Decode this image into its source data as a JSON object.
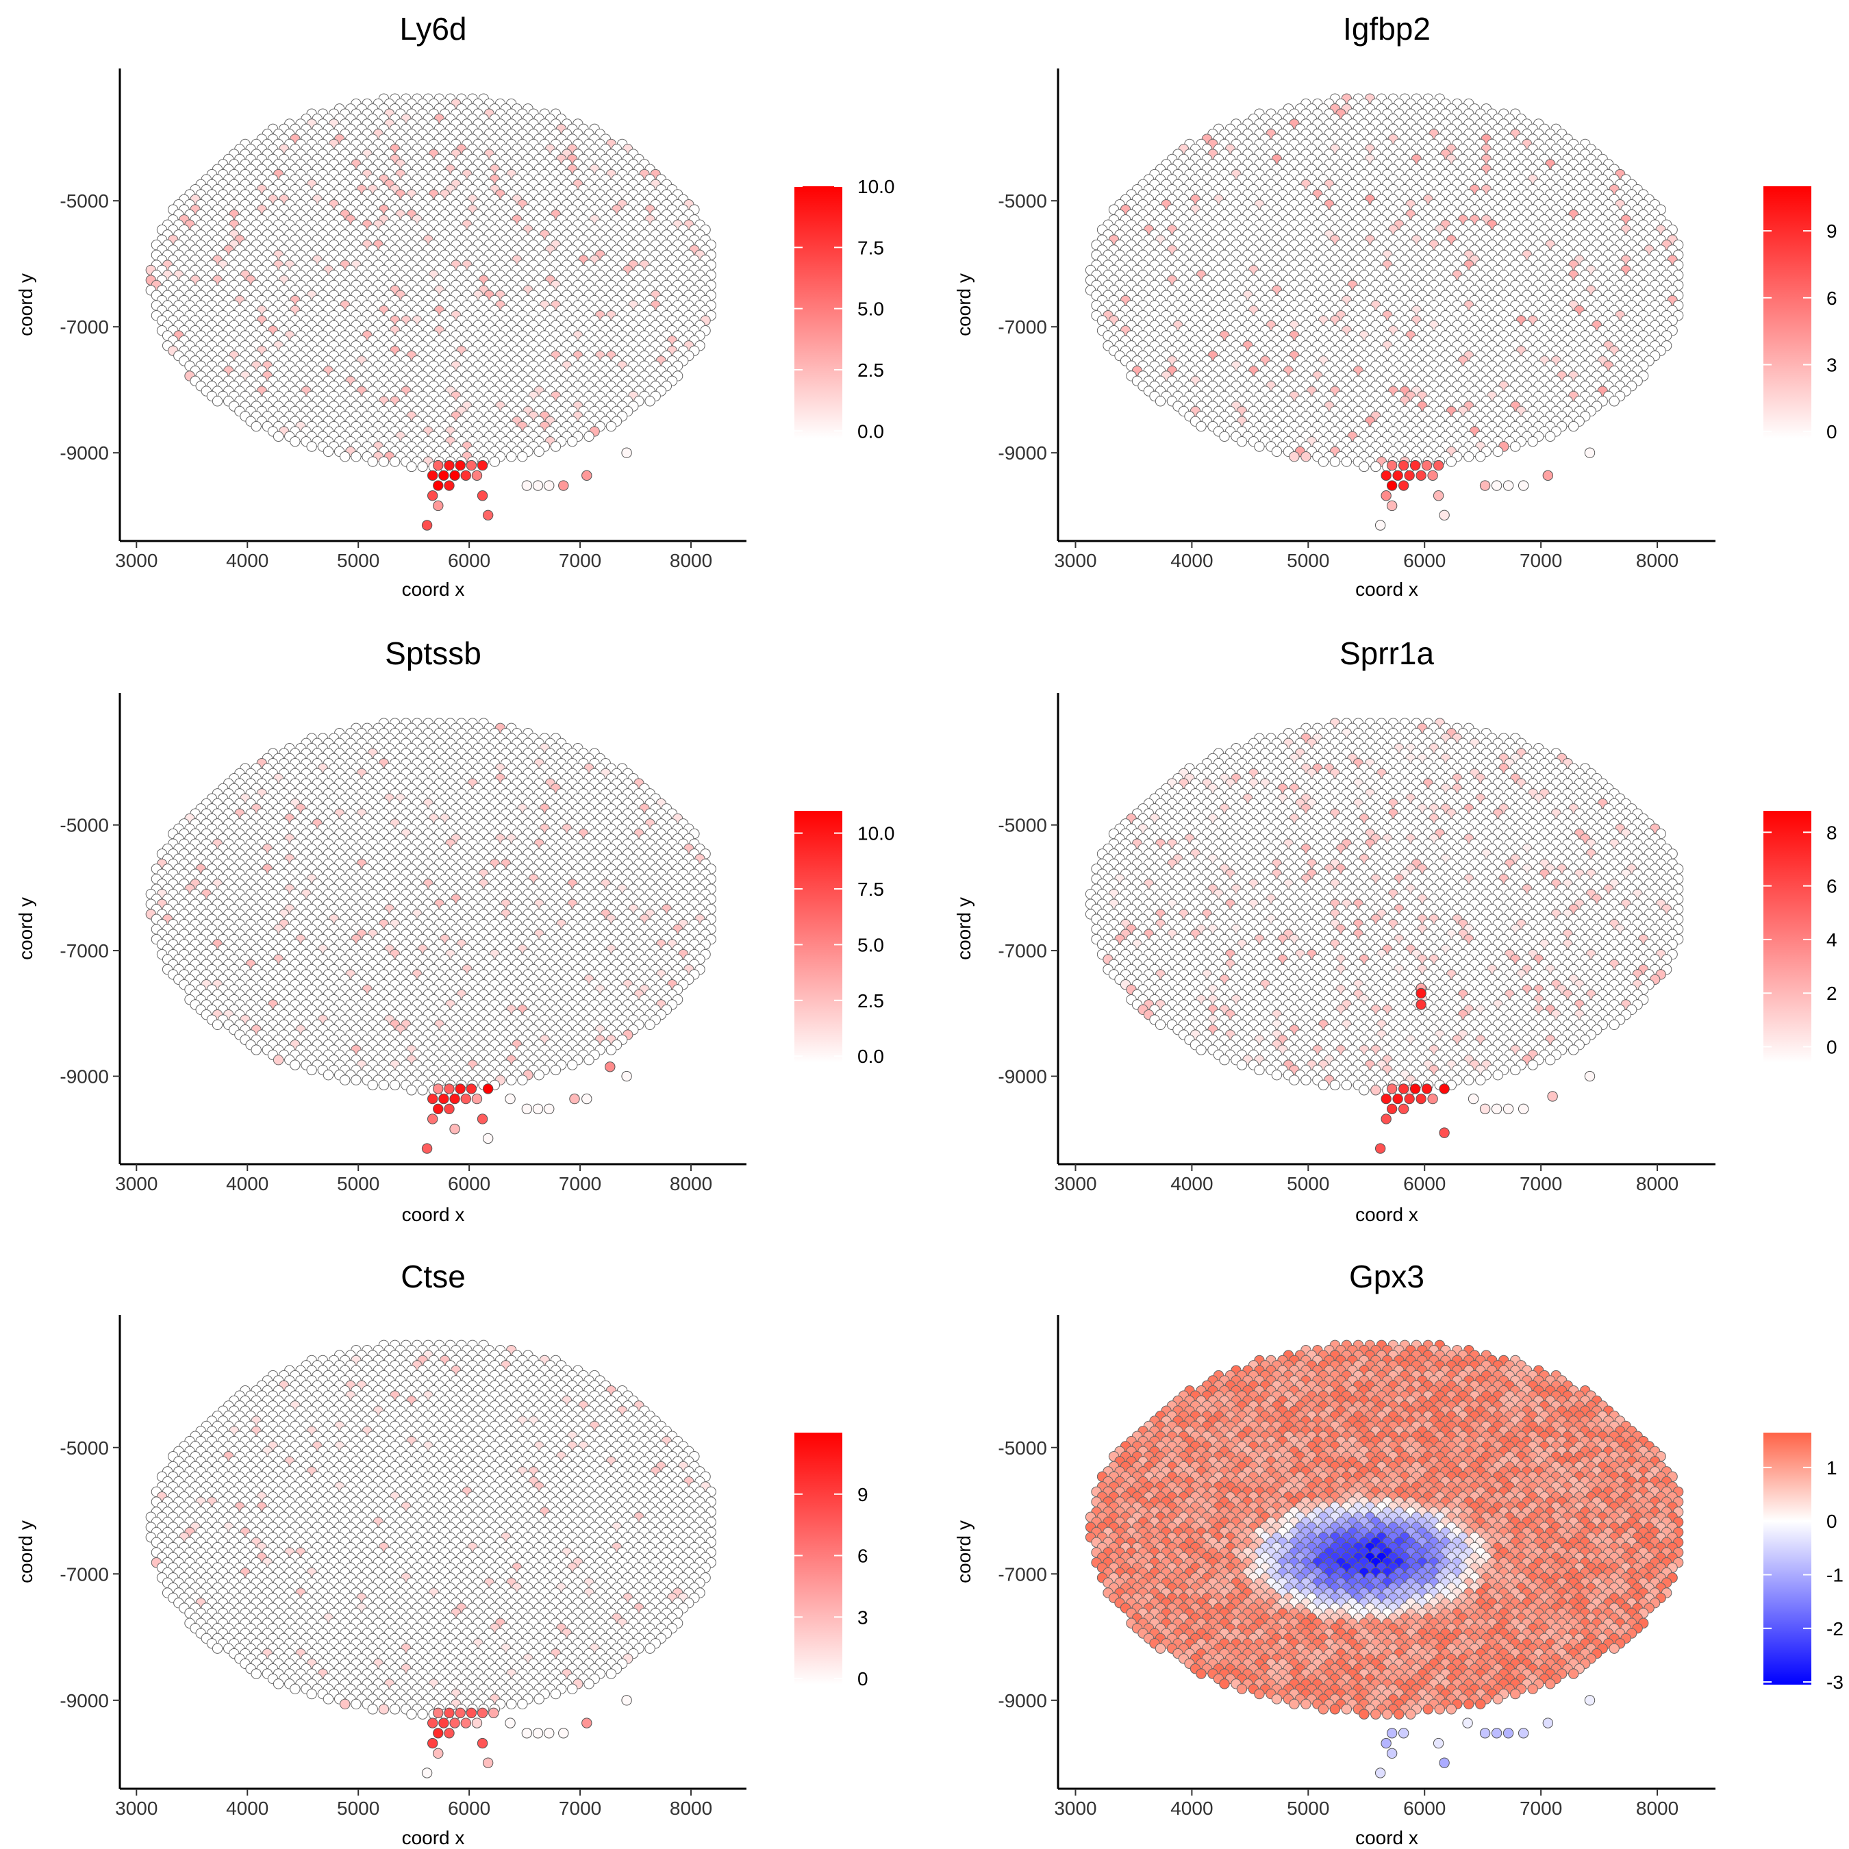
{
  "figure": {
    "layout": "3 rows x 2 columns",
    "point_style": "circles with thin grey outline",
    "default_colors": {
      "low": "#ffffff",
      "high": "#ff0000",
      "outline": "#555555"
    }
  },
  "chart_data": [
    {
      "type": "scatter",
      "title": "Ly6d",
      "xlabel": "coord x",
      "ylabel": "coord y",
      "xticks": [
        3000,
        4000,
        5000,
        6000,
        7000,
        8000
      ],
      "yticks": [
        -5000,
        -7000,
        -9000
      ],
      "xlim": [
        2850,
        8500
      ],
      "ylim": [
        -10400,
        -2900
      ],
      "colorbar": {
        "low": "#ffffff",
        "high": "#ff0000",
        "min": -0.3,
        "max": 10.0,
        "ticks": [
          "0.0",
          "2.5",
          "5.0",
          "7.5",
          "10.0"
        ],
        "tick_values": [
          0,
          2.5,
          5,
          7.5,
          10
        ]
      },
      "background_expression": {
        "nonzero_fraction": 0.08,
        "typical_range": [
          1,
          3
        ]
      },
      "hotspot_points": [
        {
          "x": 5720,
          "y": -9200,
          "value": 6
        },
        {
          "x": 5820,
          "y": -9200,
          "value": 9
        },
        {
          "x": 5920,
          "y": -9200,
          "value": 9.5
        },
        {
          "x": 6020,
          "y": -9200,
          "value": 6
        },
        {
          "x": 6120,
          "y": -9200,
          "value": 9
        },
        {
          "x": 5670,
          "y": -9360,
          "value": 9.5
        },
        {
          "x": 5770,
          "y": -9360,
          "value": 10
        },
        {
          "x": 5870,
          "y": -9360,
          "value": 10
        },
        {
          "x": 5970,
          "y": -9360,
          "value": 8
        },
        {
          "x": 6070,
          "y": -9360,
          "value": 5
        },
        {
          "x": 5720,
          "y": -9520,
          "value": 10
        },
        {
          "x": 5820,
          "y": -9520,
          "value": 9
        },
        {
          "x": 5670,
          "y": -9680,
          "value": 7
        },
        {
          "x": 6120,
          "y": -9680,
          "value": 7
        },
        {
          "x": 5720,
          "y": -9840,
          "value": 4
        },
        {
          "x": 6170,
          "y": -9990,
          "value": 6
        },
        {
          "x": 5620,
          "y": -10150,
          "value": 7
        },
        {
          "x": 6520,
          "y": -9520,
          "value": 0.3
        },
        {
          "x": 6620,
          "y": -9520,
          "value": 0.3
        },
        {
          "x": 6720,
          "y": -9520,
          "value": 0.3
        },
        {
          "x": 6850,
          "y": -9520,
          "value": 4
        },
        {
          "x": 7060,
          "y": -9360,
          "value": 4
        },
        {
          "x": 7420,
          "y": -9000,
          "value": 0.3
        }
      ]
    },
    {
      "type": "scatter",
      "title": "Igfbp2",
      "xlabel": "coord x",
      "ylabel": "coord y",
      "xticks": [
        3000,
        4000,
        5000,
        6000,
        7000,
        8000
      ],
      "yticks": [
        -5000,
        -7000,
        -9000
      ],
      "xlim": [
        2850,
        8500
      ],
      "ylim": [
        -10400,
        -2900
      ],
      "colorbar": {
        "low": "#ffffff",
        "high": "#ff0000",
        "min": -0.3,
        "max": 11.0,
        "ticks": [
          "0",
          "3",
          "6",
          "9"
        ],
        "tick_values": [
          0,
          3,
          6,
          9
        ]
      },
      "background_expression": {
        "nonzero_fraction": 0.07,
        "typical_range": [
          1,
          4
        ]
      },
      "hotspot_points": [
        {
          "x": 5720,
          "y": -9200,
          "value": 6
        },
        {
          "x": 5820,
          "y": -9200,
          "value": 8
        },
        {
          "x": 5920,
          "y": -9200,
          "value": 9
        },
        {
          "x": 6020,
          "y": -9200,
          "value": 6
        },
        {
          "x": 6120,
          "y": -9200,
          "value": 7
        },
        {
          "x": 5670,
          "y": -9360,
          "value": 10
        },
        {
          "x": 5770,
          "y": -9360,
          "value": 10
        },
        {
          "x": 5870,
          "y": -9360,
          "value": 9
        },
        {
          "x": 5970,
          "y": -9360,
          "value": 8
        },
        {
          "x": 6070,
          "y": -9360,
          "value": 5
        },
        {
          "x": 5720,
          "y": -9520,
          "value": 11
        },
        {
          "x": 5820,
          "y": -9520,
          "value": 9
        },
        {
          "x": 5670,
          "y": -9680,
          "value": 5
        },
        {
          "x": 6120,
          "y": -9680,
          "value": 3
        },
        {
          "x": 5720,
          "y": -9840,
          "value": 3
        },
        {
          "x": 6170,
          "y": -9990,
          "value": 1
        },
        {
          "x": 5620,
          "y": -10150,
          "value": 0.3
        },
        {
          "x": 6520,
          "y": -9520,
          "value": 3
        },
        {
          "x": 6620,
          "y": -9520,
          "value": 0.3
        },
        {
          "x": 6720,
          "y": -9520,
          "value": 0.3
        },
        {
          "x": 6850,
          "y": -9520,
          "value": 0.3
        },
        {
          "x": 7060,
          "y": -9360,
          "value": 4
        },
        {
          "x": 7420,
          "y": -9000,
          "value": 0.3
        }
      ]
    },
    {
      "type": "scatter",
      "title": "Sptssb",
      "xlabel": "coord x",
      "ylabel": "coord y",
      "xticks": [
        3000,
        4000,
        5000,
        6000,
        7000,
        8000
      ],
      "yticks": [
        -5000,
        -7000,
        -9000
      ],
      "xlim": [
        2850,
        8500
      ],
      "ylim": [
        -10400,
        -2900
      ],
      "colorbar": {
        "low": "#ffffff",
        "high": "#ff0000",
        "min": -0.3,
        "max": 11.0,
        "ticks": [
          "0.0",
          "2.5",
          "5.0",
          "7.5",
          "10.0"
        ],
        "tick_values": [
          0,
          2.5,
          5,
          7.5,
          10
        ]
      },
      "background_expression": {
        "nonzero_fraction": 0.05,
        "typical_range": [
          1,
          3
        ]
      },
      "hotspot_points": [
        {
          "x": 5720,
          "y": -9200,
          "value": 5
        },
        {
          "x": 5820,
          "y": -9200,
          "value": 7
        },
        {
          "x": 5920,
          "y": -9200,
          "value": 10
        },
        {
          "x": 6020,
          "y": -9200,
          "value": 9
        },
        {
          "x": 6170,
          "y": -9200,
          "value": 11
        },
        {
          "x": 5670,
          "y": -9360,
          "value": 9
        },
        {
          "x": 5770,
          "y": -9360,
          "value": 10
        },
        {
          "x": 5870,
          "y": -9360,
          "value": 10
        },
        {
          "x": 5970,
          "y": -9360,
          "value": 7
        },
        {
          "x": 6070,
          "y": -9360,
          "value": 4
        },
        {
          "x": 5720,
          "y": -9520,
          "value": 10
        },
        {
          "x": 5820,
          "y": -9520,
          "value": 8
        },
        {
          "x": 5670,
          "y": -9680,
          "value": 6
        },
        {
          "x": 6120,
          "y": -9680,
          "value": 7
        },
        {
          "x": 5870,
          "y": -9840,
          "value": 3
        },
        {
          "x": 6170,
          "y": -9990,
          "value": 0.3
        },
        {
          "x": 5620,
          "y": -10150,
          "value": 7
        },
        {
          "x": 6370,
          "y": -9360,
          "value": 0.3
        },
        {
          "x": 6520,
          "y": -9520,
          "value": 0.3
        },
        {
          "x": 6620,
          "y": -9520,
          "value": 0.3
        },
        {
          "x": 6720,
          "y": -9520,
          "value": 0.3
        },
        {
          "x": 6950,
          "y": -9360,
          "value": 3
        },
        {
          "x": 7060,
          "y": -9360,
          "value": 0.3
        },
        {
          "x": 7270,
          "y": -8850,
          "value": 5
        },
        {
          "x": 7420,
          "y": -9000,
          "value": 0.3
        }
      ]
    },
    {
      "type": "scatter",
      "title": "Sprr1a",
      "xlabel": "coord x",
      "ylabel": "coord y",
      "xticks": [
        3000,
        4000,
        5000,
        6000,
        7000,
        8000
      ],
      "yticks": [
        -5000,
        -7000,
        -9000
      ],
      "xlim": [
        2850,
        8500
      ],
      "ylim": [
        -10400,
        -2900
      ],
      "colorbar": {
        "low": "#ffffff",
        "high": "#ff0000",
        "min": -0.6,
        "max": 8.8,
        "ticks": [
          "0",
          "2",
          "4",
          "6",
          "8"
        ],
        "tick_values": [
          0,
          2,
          4,
          6,
          8
        ]
      },
      "background_expression": {
        "nonzero_fraction": 0.12,
        "typical_range": [
          0.5,
          2.5
        ]
      },
      "hotspot_points": [
        {
          "x": 5720,
          "y": -9200,
          "value": 5
        },
        {
          "x": 5820,
          "y": -9200,
          "value": 7
        },
        {
          "x": 5920,
          "y": -9200,
          "value": 8.5
        },
        {
          "x": 6020,
          "y": -9200,
          "value": 8
        },
        {
          "x": 6170,
          "y": -9200,
          "value": 8.5
        },
        {
          "x": 5670,
          "y": -9360,
          "value": 8
        },
        {
          "x": 5770,
          "y": -9360,
          "value": 8
        },
        {
          "x": 5870,
          "y": -9360,
          "value": 7
        },
        {
          "x": 5970,
          "y": -9360,
          "value": 7
        },
        {
          "x": 6070,
          "y": -9360,
          "value": 4
        },
        {
          "x": 5720,
          "y": -9520,
          "value": 7
        },
        {
          "x": 5820,
          "y": -9520,
          "value": 6
        },
        {
          "x": 5670,
          "y": -9680,
          "value": 6
        },
        {
          "x": 6170,
          "y": -9900,
          "value": 6
        },
        {
          "x": 5620,
          "y": -10150,
          "value": 6
        },
        {
          "x": 5970,
          "y": -7600,
          "value": 3
        },
        {
          "x": 5970,
          "y": -7680,
          "value": 8
        },
        {
          "x": 5970,
          "y": -7860,
          "value": 7
        },
        {
          "x": 6420,
          "y": -9360,
          "value": 0.3
        },
        {
          "x": 6520,
          "y": -9520,
          "value": 1
        },
        {
          "x": 6620,
          "y": -9520,
          "value": 0.3
        },
        {
          "x": 6720,
          "y": -9520,
          "value": 0.3
        },
        {
          "x": 6850,
          "y": -9520,
          "value": 0.3
        },
        {
          "x": 7100,
          "y": -9320,
          "value": 2
        },
        {
          "x": 7420,
          "y": -9000,
          "value": 0.3
        }
      ]
    },
    {
      "type": "scatter",
      "title": "Ctse",
      "xlabel": "coord x",
      "ylabel": "coord y",
      "xticks": [
        3000,
        4000,
        5000,
        6000,
        7000,
        8000
      ],
      "yticks": [
        -5000,
        -7000,
        -9000
      ],
      "xlim": [
        2850,
        8500
      ],
      "ylim": [
        -10400,
        -2900
      ],
      "colorbar": {
        "low": "#ffffff",
        "high": "#ff0000",
        "min": -0.3,
        "max": 12.0,
        "ticks": [
          "0",
          "3",
          "6",
          "9"
        ],
        "tick_values": [
          0,
          3,
          6,
          9
        ]
      },
      "background_expression": {
        "nonzero_fraction": 0.05,
        "typical_range": [
          1,
          3
        ]
      },
      "hotspot_points": [
        {
          "x": 5720,
          "y": -9200,
          "value": 6
        },
        {
          "x": 5820,
          "y": -9200,
          "value": 8
        },
        {
          "x": 5920,
          "y": -9200,
          "value": 7
        },
        {
          "x": 6020,
          "y": -9200,
          "value": 8
        },
        {
          "x": 6120,
          "y": -9200,
          "value": 7
        },
        {
          "x": 6220,
          "y": -9200,
          "value": 4
        },
        {
          "x": 5670,
          "y": -9360,
          "value": 8
        },
        {
          "x": 5770,
          "y": -9360,
          "value": 9
        },
        {
          "x": 5870,
          "y": -9360,
          "value": 7
        },
        {
          "x": 5970,
          "y": -9360,
          "value": 6
        },
        {
          "x": 6070,
          "y": -9360,
          "value": 2
        },
        {
          "x": 5720,
          "y": -9520,
          "value": 10
        },
        {
          "x": 5820,
          "y": -9520,
          "value": 8
        },
        {
          "x": 5670,
          "y": -9680,
          "value": 9
        },
        {
          "x": 6120,
          "y": -9680,
          "value": 8
        },
        {
          "x": 5720,
          "y": -9840,
          "value": 3
        },
        {
          "x": 6170,
          "y": -9990,
          "value": 3
        },
        {
          "x": 5620,
          "y": -10150,
          "value": 0.3
        },
        {
          "x": 6370,
          "y": -9360,
          "value": 0.3
        },
        {
          "x": 6520,
          "y": -9520,
          "value": 0.3
        },
        {
          "x": 6620,
          "y": -9520,
          "value": 0.3
        },
        {
          "x": 6720,
          "y": -9520,
          "value": 0.3
        },
        {
          "x": 6850,
          "y": -9520,
          "value": 0.3
        },
        {
          "x": 7060,
          "y": -9360,
          "value": 5
        },
        {
          "x": 7420,
          "y": -9000,
          "value": 0.3
        }
      ]
    },
    {
      "type": "scatter",
      "title": "Gpx3",
      "xlabel": "coord x",
      "ylabel": "coord y",
      "xticks": [
        3000,
        4000,
        5000,
        6000,
        7000,
        8000
      ],
      "yticks": [
        -5000,
        -7000,
        -9000
      ],
      "xlim": [
        2850,
        8500
      ],
      "ylim": [
        -10400,
        -2900
      ],
      "colorbar": {
        "low": "#0000ff",
        "mid": "#ffffff",
        "high": "#ff6347",
        "min": -3.05,
        "max": 1.65,
        "ticks": [
          "-3",
          "-2",
          "-1",
          "0",
          "1"
        ],
        "tick_values": [
          -3,
          -2,
          -1,
          0,
          1
        ]
      },
      "diverging_pattern": {
        "center_x": 5500,
        "center_y": -6750,
        "center_value": -2.7,
        "rim_value": 1.2
      },
      "hotspot_points": [
        {
          "x": 5720,
          "y": -9520,
          "value": -0.8
        },
        {
          "x": 5820,
          "y": -9520,
          "value": -0.6
        },
        {
          "x": 5670,
          "y": -9680,
          "value": -0.9
        },
        {
          "x": 6120,
          "y": -9680,
          "value": -0.3
        },
        {
          "x": 5720,
          "y": -9840,
          "value": -0.6
        },
        {
          "x": 6170,
          "y": -9990,
          "value": -1.0
        },
        {
          "x": 5620,
          "y": -10150,
          "value": -0.4
        },
        {
          "x": 6370,
          "y": -9360,
          "value": -0.2
        },
        {
          "x": 6520,
          "y": -9520,
          "value": -0.7
        },
        {
          "x": 6620,
          "y": -9520,
          "value": -0.8
        },
        {
          "x": 6720,
          "y": -9520,
          "value": -0.9
        },
        {
          "x": 6850,
          "y": -9520,
          "value": -0.6
        },
        {
          "x": 7060,
          "y": -9360,
          "value": -0.4
        },
        {
          "x": 7420,
          "y": -9000,
          "value": -0.2
        }
      ]
    }
  ]
}
